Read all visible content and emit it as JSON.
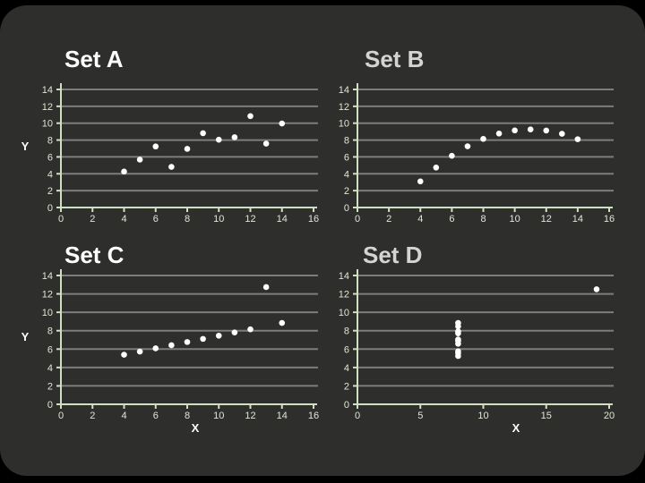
{
  "page": {
    "background": "#000000",
    "slide_background": "#2e2e2c"
  },
  "colors": {
    "gridline": "#7d7d7d",
    "axis": "#cfe0c2",
    "tick_label": "#dfe8d4",
    "marker": "#ffffff",
    "axis_label": "#ffffff"
  },
  "chart_data": [
    {
      "type": "scatter",
      "title": "Set A",
      "title_color": "#ffffff",
      "ylabel": "Y",
      "xlim": [
        0,
        16
      ],
      "ylim": [
        0,
        14
      ],
      "xticks": [
        0,
        2,
        4,
        6,
        8,
        10,
        12,
        14,
        16
      ],
      "yticks": [
        0,
        2,
        4,
        6,
        8,
        10,
        12,
        14
      ],
      "grid": "horizontal",
      "legend": "none",
      "points": {
        "x": [
          10,
          8,
          13,
          9,
          11,
          14,
          6,
          4,
          12,
          7,
          5
        ],
        "y": [
          8.04,
          6.95,
          7.58,
          8.81,
          8.33,
          9.96,
          7.24,
          4.26,
          10.84,
          4.82,
          5.68
        ]
      }
    },
    {
      "type": "scatter",
      "title": "Set B",
      "title_color": "#d4d4d4",
      "xlim": [
        0,
        16
      ],
      "ylim": [
        0,
        14
      ],
      "xticks": [
        0,
        2,
        4,
        6,
        8,
        10,
        12,
        14,
        16
      ],
      "yticks": [
        0,
        2,
        4,
        6,
        8,
        10,
        12,
        14
      ],
      "grid": "horizontal",
      "legend": "none",
      "points": {
        "x": [
          10,
          8,
          13,
          9,
          11,
          14,
          6,
          4,
          12,
          7,
          5
        ],
        "y": [
          9.14,
          8.14,
          8.74,
          8.77,
          9.26,
          8.1,
          6.13,
          3.1,
          9.13,
          7.26,
          4.74
        ]
      }
    },
    {
      "type": "scatter",
      "title": "Set C",
      "title_color": "#ffffff",
      "xlabel": "X",
      "ylabel": "Y",
      "xlim": [
        0,
        16
      ],
      "ylim": [
        0,
        14
      ],
      "xticks": [
        0,
        2,
        4,
        6,
        8,
        10,
        12,
        14,
        16
      ],
      "yticks": [
        0,
        2,
        4,
        6,
        8,
        10,
        12,
        14
      ],
      "grid": "horizontal",
      "legend": "none",
      "points": {
        "x": [
          10,
          8,
          13,
          9,
          11,
          14,
          6,
          4,
          12,
          7,
          5
        ],
        "y": [
          7.46,
          6.77,
          12.74,
          7.11,
          7.81,
          8.84,
          6.08,
          5.39,
          8.15,
          6.42,
          5.73
        ]
      }
    },
    {
      "type": "scatter",
      "title": "Set D",
      "title_color": "#d4d4d4",
      "xlabel": "X",
      "xlim": [
        0,
        20
      ],
      "ylim": [
        0,
        14
      ],
      "xticks": [
        0,
        5,
        10,
        15,
        20
      ],
      "yticks": [
        0,
        2,
        4,
        6,
        8,
        10,
        12,
        14
      ],
      "grid": "horizontal",
      "legend": "none",
      "points": {
        "x": [
          8,
          8,
          8,
          8,
          8,
          8,
          8,
          19,
          8,
          8,
          8
        ],
        "y": [
          6.58,
          5.76,
          7.71,
          8.84,
          8.47,
          7.04,
          5.25,
          12.5,
          5.56,
          7.91,
          6.89
        ]
      }
    }
  ]
}
